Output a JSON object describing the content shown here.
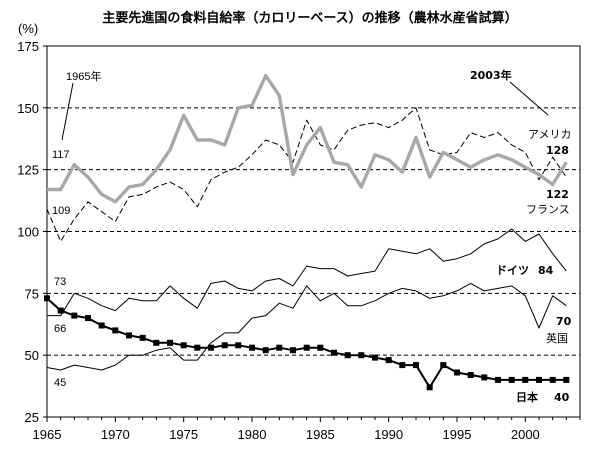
{
  "chart_data": {
    "type": "line",
    "title": "主要先進国の食料自給率（カロリーベース）の推移（農林水産省試算）",
    "yunit": "(%)",
    "xlim": [
      1965,
      2004
    ],
    "ylim": [
      25,
      175
    ],
    "xticks": [
      "1965",
      "1970",
      "1975",
      "1980",
      "1985",
      "1990",
      "1995",
      "2000"
    ],
    "yticks": [
      "25",
      "50",
      "75",
      "100",
      "125",
      "150",
      "175"
    ],
    "grid": "horizontal-dashed",
    "series": [
      {
        "name": "アメリカ",
        "color": "#a8a8a8",
        "style": "thick",
        "x": [
          1965,
          1966,
          1967,
          1968,
          1969,
          1970,
          1971,
          1972,
          1973,
          1974,
          1975,
          1976,
          1977,
          1978,
          1979,
          1980,
          1981,
          1982,
          1983,
          1984,
          1985,
          1986,
          1987,
          1988,
          1989,
          1990,
          1991,
          1992,
          1993,
          1994,
          1995,
          1996,
          1997,
          1998,
          1999,
          2000,
          2001,
          2002,
          2003
        ],
        "values": [
          117,
          117,
          127,
          122,
          115,
          112,
          118,
          119,
          125,
          133,
          147,
          137,
          137,
          135,
          150,
          151,
          163,
          155,
          123,
          135,
          142,
          128,
          127,
          118,
          131,
          129,
          124,
          138,
          122,
          132,
          129,
          126,
          129,
          131,
          129,
          126,
          123,
          119,
          128
        ]
      },
      {
        "name": "フランス",
        "color": "#000000",
        "style": "dash",
        "x": [
          1965,
          1966,
          1967,
          1968,
          1969,
          1970,
          1971,
          1972,
          1973,
          1974,
          1975,
          1976,
          1977,
          1978,
          1979,
          1980,
          1981,
          1982,
          1983,
          1984,
          1985,
          1986,
          1987,
          1988,
          1989,
          1990,
          1991,
          1992,
          1993,
          1994,
          1995,
          1996,
          1997,
          1998,
          1999,
          2000,
          2001,
          2002,
          2003
        ],
        "values": [
          109,
          96,
          105,
          112,
          108,
          104,
          114,
          115,
          118,
          120,
          117,
          110,
          121,
          124,
          126,
          131,
          137,
          135,
          128,
          145,
          135,
          133,
          141,
          143,
          144,
          142,
          145,
          150,
          133,
          131,
          132,
          140,
          138,
          140,
          135,
          132,
          121,
          130,
          122
        ]
      },
      {
        "name": "ドイツ",
        "color": "#000000",
        "style": "thin",
        "x": [
          1965,
          1966,
          1967,
          1968,
          1969,
          1970,
          1971,
          1972,
          1973,
          1974,
          1975,
          1976,
          1977,
          1978,
          1979,
          1980,
          1981,
          1982,
          1983,
          1984,
          1985,
          1986,
          1987,
          1988,
          1989,
          1990,
          1991,
          1992,
          1993,
          1994,
          1995,
          1996,
          1997,
          1998,
          1999,
          2000,
          2001,
          2002,
          2003
        ],
        "values": [
          66,
          66,
          75,
          73,
          70,
          68,
          73,
          72,
          72,
          78,
          73,
          69,
          79,
          80,
          77,
          76,
          80,
          81,
          78,
          86,
          85,
          85,
          82,
          83,
          84,
          93,
          92,
          91,
          93,
          88,
          89,
          91,
          95,
          97,
          101,
          96,
          99,
          91,
          84
        ]
      },
      {
        "name": "英国",
        "color": "#000000",
        "style": "thin",
        "x": [
          1965,
          1966,
          1967,
          1968,
          1969,
          1970,
          1971,
          1972,
          1973,
          1974,
          1975,
          1976,
          1977,
          1978,
          1979,
          1980,
          1981,
          1982,
          1983,
          1984,
          1985,
          1986,
          1987,
          1988,
          1989,
          1990,
          1991,
          1992,
          1993,
          1994,
          1995,
          1996,
          1997,
          1998,
          1999,
          2000,
          2001,
          2002,
          2003
        ],
        "values": [
          45,
          44,
          46,
          45,
          44,
          46,
          50,
          50,
          52,
          53,
          48,
          48,
          55,
          59,
          59,
          65,
          66,
          71,
          69,
          78,
          72,
          75,
          70,
          70,
          72,
          75,
          77,
          76,
          73,
          74,
          76,
          79,
          76,
          77,
          78,
          74,
          61,
          74,
          70
        ]
      },
      {
        "name": "日本",
        "color": "#000000",
        "style": "marker",
        "x": [
          1965,
          1966,
          1967,
          1968,
          1969,
          1970,
          1971,
          1972,
          1973,
          1974,
          1975,
          1976,
          1977,
          1978,
          1979,
          1980,
          1981,
          1982,
          1983,
          1984,
          1985,
          1986,
          1987,
          1988,
          1989,
          1990,
          1991,
          1992,
          1993,
          1994,
          1995,
          1996,
          1997,
          1998,
          1999,
          2000,
          2001,
          2002,
          2003
        ],
        "values": [
          73,
          68,
          66,
          65,
          62,
          60,
          58,
          57,
          55,
          55,
          54,
          53,
          53,
          54,
          54,
          53,
          52,
          53,
          52,
          53,
          53,
          51,
          50,
          50,
          49,
          48,
          46,
          46,
          37,
          46,
          43,
          42,
          41,
          40,
          40,
          40,
          40,
          40,
          40
        ]
      }
    ],
    "annotations": {
      "year_1965": "1965年",
      "year_2003": "2003年",
      "start_usa": "117",
      "start_fra": "109",
      "start_ger": "73",
      "start_uk_a": "66",
      "start_uk_b": "45",
      "end_usa": "128",
      "end_fra": "122",
      "end_ger": "84",
      "end_uk": "70",
      "end_jpn": "40"
    }
  }
}
